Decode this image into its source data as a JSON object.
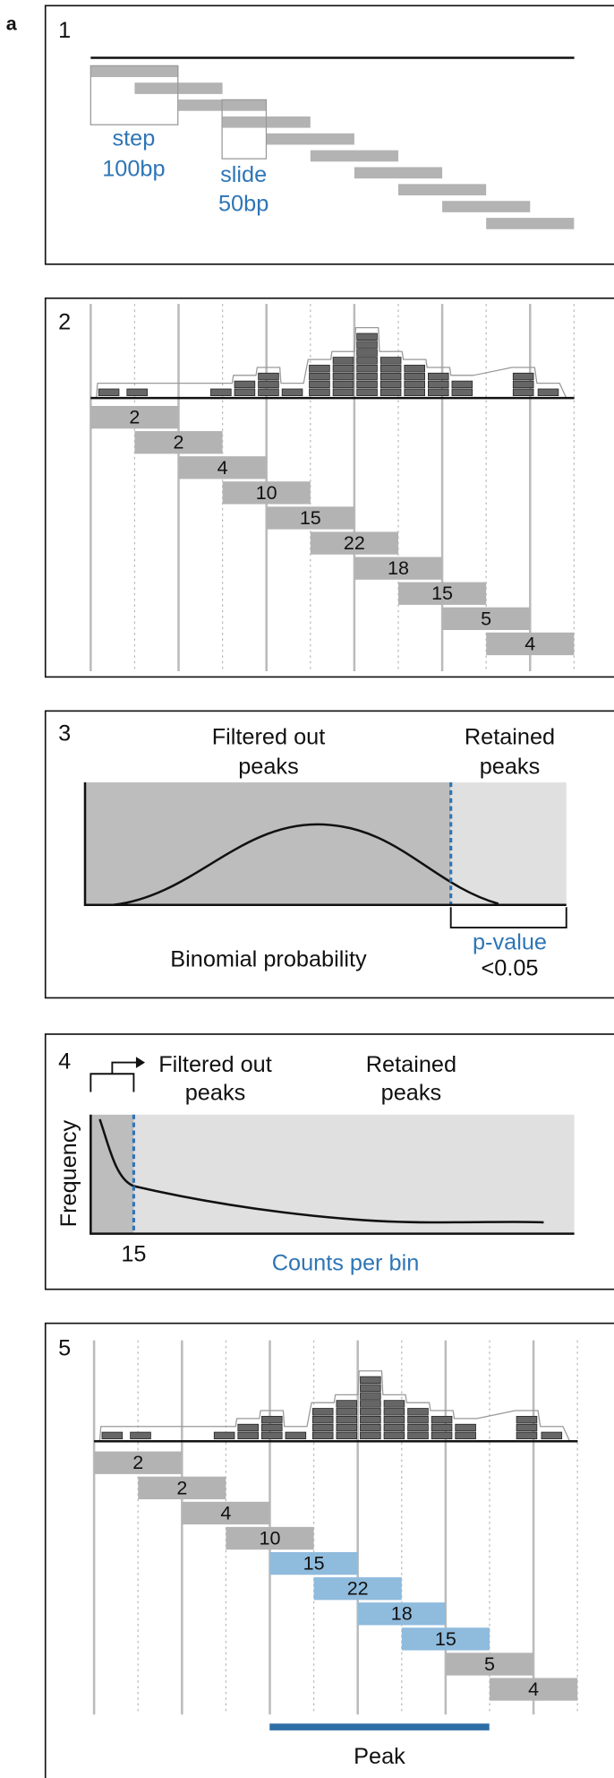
{
  "label": "a",
  "panel1": {
    "number": "1",
    "step_label": "step",
    "step_value": "100bp",
    "slide_label": "slide",
    "slide_value": "50bp"
  },
  "panel2": {
    "number": "2",
    "bin_counts": [
      2,
      2,
      4,
      10,
      15,
      22,
      18,
      15,
      5,
      4
    ]
  },
  "panel3": {
    "number": "3",
    "filtered_lines": [
      "Filtered out",
      "peaks"
    ],
    "retained_lines": [
      "Retained",
      "peaks"
    ],
    "x_label": "Binomial probability",
    "pvalue_label": "p-value",
    "pvalue_threshold": "<0.05"
  },
  "panel4": {
    "number": "4",
    "filtered_lines": [
      "Filtered out",
      "peaks"
    ],
    "retained_lines": [
      "Retained",
      "peaks"
    ],
    "y_label": "Frequency",
    "x_label": "Counts per bin",
    "threshold": "15"
  },
  "panel5": {
    "number": "5",
    "bin_counts": [
      2,
      2,
      4,
      10,
      15,
      22,
      18,
      15,
      5,
      4
    ],
    "highlight_color": "#8fbbdd",
    "peak_label": "Peak"
  }
}
